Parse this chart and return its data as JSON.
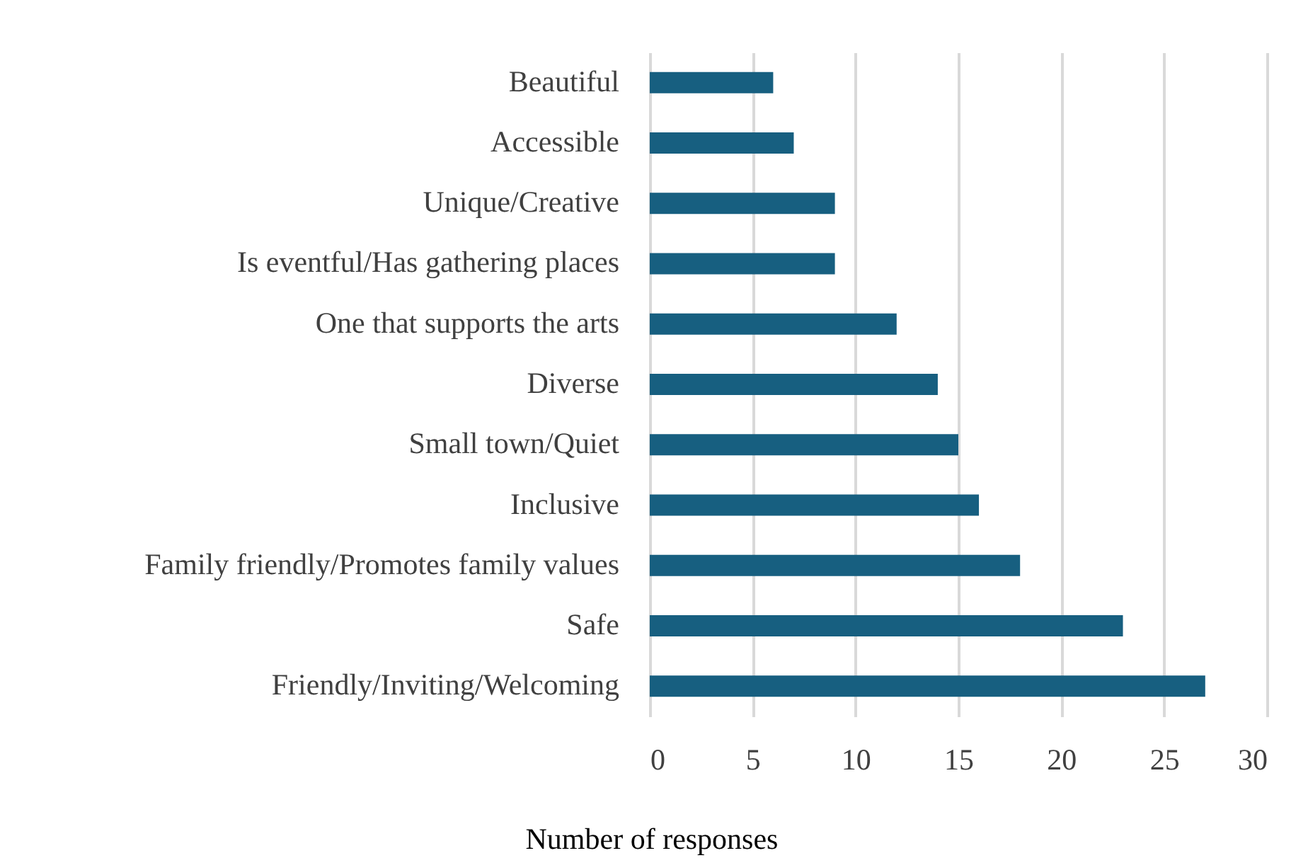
{
  "chart_data": {
    "type": "bar",
    "orientation": "horizontal",
    "xlabel": "Number of responses",
    "categories": [
      "Beautiful",
      "Accessible",
      "Unique/Creative",
      "Is eventful/Has gathering places",
      "One that supports the arts",
      "Diverse",
      "Small town/Quiet",
      "Inclusive",
      "Family friendly/Promotes family values",
      "Safe",
      "Friendly/Inviting/Welcoming"
    ],
    "values": [
      6,
      7,
      9,
      9,
      12,
      14,
      15,
      16,
      18,
      23,
      27
    ],
    "color": "#175f80",
    "xlim": [
      0,
      30
    ],
    "xticks": [
      0,
      5,
      10,
      15,
      20,
      25,
      30
    ],
    "grid": "x"
  }
}
